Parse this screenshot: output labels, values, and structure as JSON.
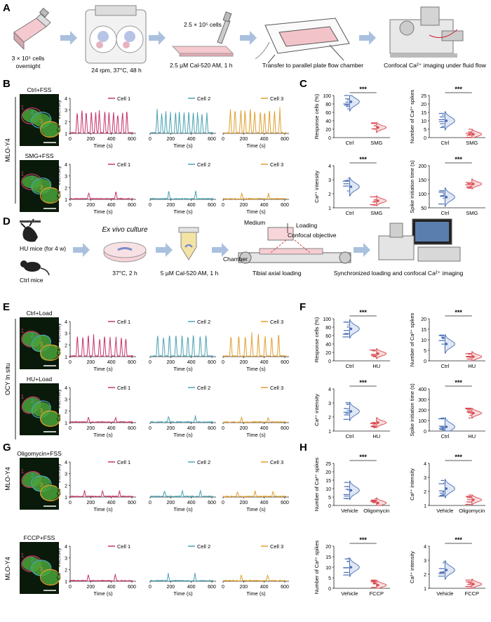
{
  "colors": {
    "cell1": "#c8336b",
    "cell2": "#4aa3b4",
    "cell3": "#e0a030",
    "ctrl": "#4a6fb5",
    "ctrl_fill": "#dfe7f4",
    "treat": "#d94850",
    "treat_fill": "#f8dcdc",
    "arrow": "#a9c1de",
    "micro_bg": "#0a1a0a",
    "micro_cell": "#49a53a"
  },
  "panel_letters": [
    "A",
    "B",
    "C",
    "D",
    "E",
    "F",
    "G",
    "H"
  ],
  "panel_a": {
    "seed_label": "3 × 10⁵ cells",
    "seed_sub": "overnight",
    "clinostat_label": "24 rpm, 37°C, 48 h",
    "reseed_label": "2.5 × 10⁵ cells",
    "dye_label": "2.5 µM  Cal-520 AM, 1 h",
    "transfer_label": "Transfer to parallel plate flow chamber",
    "imaging_label": "Confocal Ca²⁺ imaging under fluid flow"
  },
  "panel_d": {
    "hu_label": "HU mice (for 4 w)",
    "ctrl_label": "Ctrl mice",
    "culture_label": "Ex vivo culture",
    "culture_cond": "37°C, 2 h",
    "dye_label": "5 µM Cal-520 AM, 1 h",
    "medium_label": "Medium",
    "loading_label": "Loading",
    "objective_label": "Confocal objective",
    "chamber_label": "Chamber",
    "tibial_label": "Tibial axial loading",
    "sync_label": "Synchronized loading and confocal Ca²⁺ imaging"
  },
  "row_side_labels": {
    "b": "MLO-Y4",
    "e": "OCY In situ",
    "g1": "MLO-Y4",
    "g2": "MLO-Y4"
  },
  "traces": {
    "ylabel": "Ca²⁺ intensity",
    "xlabel": "Time (s)",
    "yticks": [
      "1",
      "2",
      "3",
      "4"
    ],
    "xticks": [
      "0",
      "200",
      "400",
      "600"
    ],
    "legend": [
      "Cell 1",
      "Cell 2",
      "Cell 3"
    ]
  },
  "trace_rows": [
    {
      "title": "Ctrl+FSS",
      "peaks": [
        12,
        12,
        11
      ],
      "amp": [
        1.9,
        1.8,
        2.0
      ],
      "cell_labels": [
        "1",
        "2",
        "3"
      ]
    },
    {
      "title": "SMG+FSS",
      "peaks": [
        2,
        2,
        2
      ],
      "amp": [
        0.6,
        0.7,
        0.5
      ],
      "cell_labels": [
        "1",
        "2",
        "3"
      ]
    },
    {
      "title": "Ctrl+Load",
      "peaks": [
        10,
        9,
        8
      ],
      "amp": [
        1.7,
        1.9,
        1.8
      ],
      "cell_labels": [
        "1",
        "2",
        "3"
      ]
    },
    {
      "title": "HU+Load",
      "peaks": [
        2,
        2,
        2
      ],
      "amp": [
        0.4,
        0.5,
        0.4
      ],
      "cell_labels": [
        "1",
        "2",
        "3"
      ]
    },
    {
      "title": "Oligomycin+FSS",
      "peaks": [
        3,
        3,
        3
      ],
      "amp": [
        0.5,
        0.5,
        0.5
      ],
      "cell_labels": [
        "1",
        "2",
        "3"
      ]
    },
    {
      "title": "FCCP+FSS",
      "peaks": [
        2,
        2,
        2
      ],
      "amp": [
        0.6,
        0.6,
        0.5
      ],
      "cell_labels": [
        "1",
        "2",
        "3"
      ]
    }
  ],
  "chart_data": [
    {
      "type": "violin",
      "panel": "C",
      "ylabel": "Response cells (%)",
      "categories": [
        "Ctrl",
        "SMG"
      ],
      "yticks": [
        0,
        20,
        40,
        60,
        80,
        100
      ],
      "ylim": [
        0,
        100
      ],
      "centers": [
        85,
        24
      ],
      "sig": "***"
    },
    {
      "type": "violin",
      "panel": "C",
      "ylabel": "Number of Ca²⁺ spikes",
      "categories": [
        "Ctrl",
        "SMG"
      ],
      "yticks": [
        0,
        5,
        10,
        15,
        20,
        25
      ],
      "ylim": [
        0,
        25
      ],
      "centers": [
        10,
        2
      ],
      "sig": "***"
    },
    {
      "type": "violin",
      "panel": "C",
      "ylabel": "Ca²⁺ intensity",
      "categories": [
        "Ctrl",
        "SMG"
      ],
      "yticks": [
        1,
        2,
        3,
        4
      ],
      "ylim": [
        1,
        4
      ],
      "centers": [
        2.5,
        1.5
      ],
      "sig": "***"
    },
    {
      "type": "violin",
      "panel": "C",
      "ylabel": "Spike initiation time (s)",
      "categories": [
        "Ctrl",
        "SMG"
      ],
      "yticks": [
        50,
        100,
        150,
        200
      ],
      "ylim": [
        50,
        200
      ],
      "centers": [
        88,
        135
      ],
      "sig": "***"
    },
    {
      "type": "violin",
      "panel": "F",
      "ylabel": "Response cells (%)",
      "categories": [
        "Ctrl",
        "HU"
      ],
      "yticks": [
        0,
        20,
        40,
        60,
        80,
        100
      ],
      "ylim": [
        0,
        100
      ],
      "centers": [
        76,
        17
      ],
      "sig": "***"
    },
    {
      "type": "violin",
      "panel": "F",
      "ylabel": "Number of Ca²⁺ spikes",
      "categories": [
        "Ctrl",
        "HU"
      ],
      "yticks": [
        0,
        5,
        10,
        15,
        20
      ],
      "ylim": [
        0,
        20
      ],
      "centers": [
        8,
        2
      ],
      "sig": "***"
    },
    {
      "type": "violin",
      "panel": "F",
      "ylabel": "Ca²⁺ intensity",
      "categories": [
        "Ctrl",
        "HU"
      ],
      "yticks": [
        1,
        2,
        3,
        4
      ],
      "ylim": [
        1,
        4
      ],
      "centers": [
        2.4,
        1.6
      ],
      "sig": "***"
    },
    {
      "type": "violin",
      "panel": "F",
      "ylabel": "Spike initiation time (s)",
      "categories": [
        "Ctrl",
        "HU"
      ],
      "yticks": [
        0,
        100,
        200,
        300,
        400
      ],
      "ylim": [
        0,
        400
      ],
      "centers": [
        40,
        170
      ],
      "sig": "***"
    },
    {
      "type": "violin",
      "panel": "H",
      "ylabel": "Number of Ca²⁺ spikes",
      "categories": [
        "Vehicle",
        "Oligomycin"
      ],
      "yticks": [
        0,
        5,
        10,
        15,
        20,
        25
      ],
      "ylim": [
        0,
        25
      ],
      "centers": [
        9,
        1.5
      ],
      "sig": "***"
    },
    {
      "type": "violin",
      "panel": "H",
      "ylabel": "Ca²⁺ intensity",
      "categories": [
        "Vehicle",
        "Oligomycin"
      ],
      "yticks": [
        1,
        2,
        3,
        4
      ],
      "ylim": [
        1,
        4
      ],
      "centers": [
        2.2,
        1.4
      ],
      "sig": "***"
    },
    {
      "type": "violin",
      "panel": "H",
      "ylabel": "Number of Ca²⁺ spikes",
      "categories": [
        "Vehicle",
        "FCCP"
      ],
      "yticks": [
        0,
        5,
        10,
        15,
        20
      ],
      "ylim": [
        0,
        20
      ],
      "centers": [
        10,
        1.5
      ],
      "sig": "***"
    },
    {
      "type": "violin",
      "panel": "H",
      "ylabel": "Ca²⁺ intensity",
      "categories": [
        "Vehicle",
        "FCCP"
      ],
      "yticks": [
        1,
        2,
        3,
        4
      ],
      "ylim": [
        1,
        4
      ],
      "centers": [
        2.3,
        1.3
      ],
      "sig": "***"
    }
  ]
}
